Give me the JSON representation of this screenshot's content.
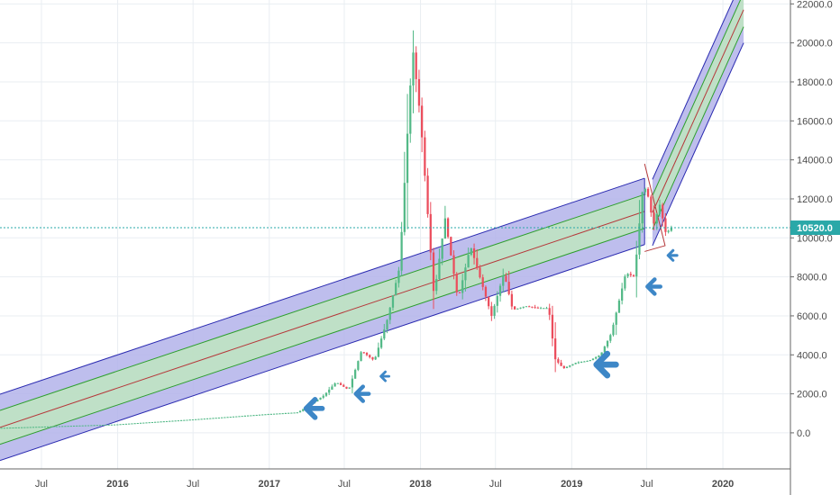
{
  "chart_data": {
    "type": "candlestick",
    "title": "",
    "xlabel": "",
    "ylabel": "",
    "x_ticks": [
      {
        "label": "Jul",
        "date": "2015-07-01"
      },
      {
        "label": "2016",
        "date": "2016-01-01"
      },
      {
        "label": "Jul",
        "date": "2016-07-01"
      },
      {
        "label": "2017",
        "date": "2017-01-01"
      },
      {
        "label": "Jul",
        "date": "2017-07-01"
      },
      {
        "label": "2018",
        "date": "2018-01-01"
      },
      {
        "label": "Jul",
        "date": "2018-07-01"
      },
      {
        "label": "2019",
        "date": "2019-01-01"
      },
      {
        "label": "Jul",
        "date": "2019-07-01"
      },
      {
        "label": "2020",
        "date": "2020-01-01"
      }
    ],
    "y_ticks": [
      "22000.0",
      "20000.0",
      "18000.0",
      "16000.0",
      "14000.0",
      "12000.0",
      "10000.0",
      "8000.0",
      "6000.0",
      "4000.0",
      "2000.0",
      "0.0"
    ],
    "ylim": [
      -1850,
      22200
    ],
    "xlim": [
      "2015-03-23",
      "2020-06-12"
    ],
    "current_price": {
      "label": "10520.0",
      "value": 10520
    },
    "colors": {
      "up": "#53b987",
      "down": "#eb4d5c",
      "channel_outer_fill": "#b3b3ea",
      "channel_inner_fill": "#bfe6bf",
      "channel_outer_line": "#2a2ab0",
      "channel_inner_line": "#2e9e2e",
      "median_line": "#b5383a",
      "price_line": "#2aa8a8",
      "arrow": "#3d87c7"
    },
    "key_points": [
      {
        "date": "2015-03-23",
        "price": 250
      },
      {
        "date": "2015-12-31",
        "price": 430
      },
      {
        "date": "2016-06-30",
        "price": 680
      },
      {
        "date": "2016-12-31",
        "price": 960
      },
      {
        "date": "2017-03-15",
        "price": 1050
      },
      {
        "date": "2017-05-15",
        "price": 1900
      },
      {
        "date": "2017-06-15",
        "price": 2600
      },
      {
        "date": "2017-07-15",
        "price": 2200
      },
      {
        "date": "2017-08-15",
        "price": 4200
      },
      {
        "date": "2017-09-15",
        "price": 3700
      },
      {
        "date": "2017-10-15",
        "price": 5700
      },
      {
        "date": "2017-11-15",
        "price": 8500
      },
      {
        "date": "2017-12-10",
        "price": 17500
      },
      {
        "date": "2017-12-17",
        "price": 19700
      },
      {
        "date": "2018-01-05",
        "price": 16000
      },
      {
        "date": "2018-02-06",
        "price": 7000
      },
      {
        "date": "2018-03-05",
        "price": 11000
      },
      {
        "date": "2018-04-05",
        "price": 6800
      },
      {
        "date": "2018-05-05",
        "price": 9600
      },
      {
        "date": "2018-06-25",
        "price": 6000
      },
      {
        "date": "2018-07-25",
        "price": 8200
      },
      {
        "date": "2018-08-15",
        "price": 6300
      },
      {
        "date": "2018-09-15",
        "price": 6500
      },
      {
        "date": "2018-10-15",
        "price": 6400
      },
      {
        "date": "2018-11-10",
        "price": 6400
      },
      {
        "date": "2018-11-25",
        "price": 3800
      },
      {
        "date": "2018-12-15",
        "price": 3300
      },
      {
        "date": "2019-01-15",
        "price": 3600
      },
      {
        "date": "2019-02-15",
        "price": 3700
      },
      {
        "date": "2019-03-15",
        "price": 4000
      },
      {
        "date": "2019-04-10",
        "price": 5100
      },
      {
        "date": "2019-05-15",
        "price": 8200
      },
      {
        "date": "2019-06-05",
        "price": 8000
      },
      {
        "date": "2019-06-26",
        "price": 12800
      },
      {
        "date": "2019-07-10",
        "price": 12000
      },
      {
        "date": "2019-07-20",
        "price": 10600
      },
      {
        "date": "2019-08-05",
        "price": 11700
      },
      {
        "date": "2019-08-20",
        "price": 10200
      },
      {
        "date": "2019-09-01",
        "price": 10520
      }
    ],
    "pitchfork": {
      "anchor": {
        "date": "2015-03-23",
        "price": 280
      },
      "slope_per_year": 2600,
      "outer_offset": 1700,
      "inner_offset": 870,
      "end_date": "2019-06-26",
      "projection": {
        "start_date": "2019-07-15",
        "start_price": 11300,
        "end_date": "2020-02-20",
        "end_price": 21700
      }
    },
    "arrows": [
      {
        "date": "2017-04-15",
        "price": 1250,
        "size": 20
      },
      {
        "date": "2017-08-10",
        "price": 2000,
        "size": 16
      },
      {
        "date": "2017-10-05",
        "price": 2900,
        "size": 10
      },
      {
        "date": "2019-03-20",
        "price": 3500,
        "size": 24
      },
      {
        "date": "2019-07-15",
        "price": 7500,
        "size": 16
      },
      {
        "date": "2019-08-30",
        "price": 9100,
        "size": 11
      }
    ]
  }
}
